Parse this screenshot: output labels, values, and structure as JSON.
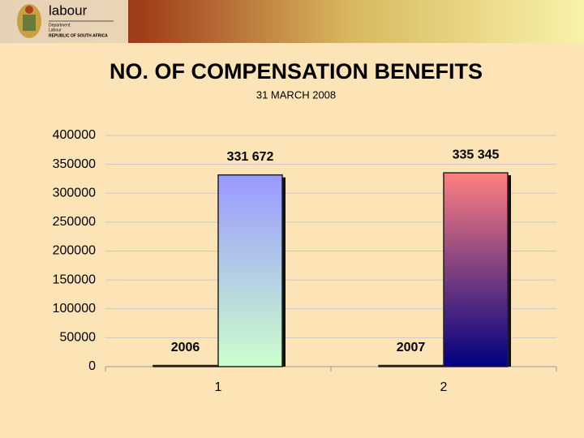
{
  "header": {
    "brand": "labour",
    "department": "Department:",
    "unit": "Labour",
    "country": "REPUBLIC OF SOUTH AFRICA"
  },
  "chart_data": {
    "type": "bar",
    "title": "NO. OF COMPENSATION BENEFITS",
    "subtitle": "31 MARCH 2008",
    "categories": [
      "1",
      "2"
    ],
    "series": [
      {
        "values": [
          2006,
          2007
        ],
        "colors": [
          [
            "#2a2a2a",
            "#2a2a2a"
          ],
          [
            "#2a2a2a",
            "#2a2a2a"
          ]
        ]
      },
      {
        "values": [
          331672,
          335345
        ],
        "value_labels": [
          "331 672",
          "335 345"
        ],
        "colors": [
          [
            "#9999ff",
            "#ccffcc"
          ],
          [
            "#ff8080",
            "#000080"
          ]
        ]
      }
    ],
    "ylim": [
      0,
      400000
    ],
    "yticks": [
      0,
      50000,
      100000,
      150000,
      200000,
      250000,
      300000,
      350000,
      400000
    ],
    "grid": true
  }
}
